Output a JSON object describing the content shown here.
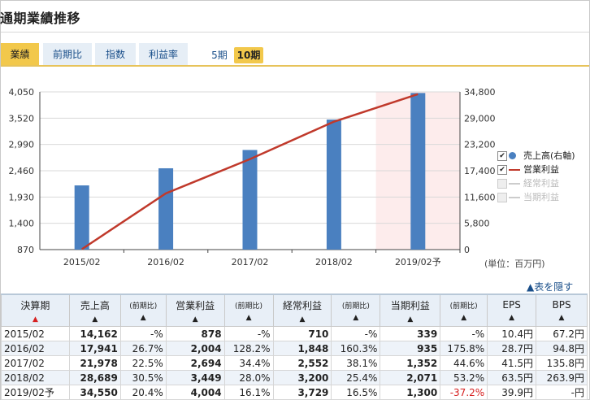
{
  "title": "通期業績推移",
  "tabs": [
    {
      "label": "業績",
      "active": true
    },
    {
      "label": "前期比",
      "active": false
    },
    {
      "label": "指数",
      "active": false
    },
    {
      "label": "利益率",
      "active": false
    }
  ],
  "periods": [
    {
      "label": "5期",
      "active": false
    },
    {
      "label": "10期",
      "active": true
    }
  ],
  "chart_data": {
    "type": "bar+line",
    "categories": [
      "2015/02",
      "2016/02",
      "2017/02",
      "2018/02",
      "2019/02予"
    ],
    "forecast_index": 4,
    "left_axis": {
      "ticks": [
        "870",
        "1,400",
        "1,930",
        "2,460",
        "2,990",
        "3,520",
        "4,050"
      ],
      "range": [
        870,
        4050
      ]
    },
    "right_axis": {
      "ticks": [
        "0",
        "5,800",
        "11,600",
        "17,400",
        "23,200",
        "29,000",
        "34,800"
      ],
      "range": [
        0,
        34800
      ]
    },
    "series": [
      {
        "name": "売上高(右軸)",
        "type": "bar",
        "axis": "right",
        "color": "#4a80c0",
        "values": [
          14162,
          17941,
          21978,
          28689,
          34550
        ]
      },
      {
        "name": "営業利益",
        "type": "line",
        "axis": "left",
        "color": "#c0392b",
        "values": [
          878,
          2004,
          2694,
          3449,
          4004
        ]
      }
    ],
    "legend_position": "right"
  },
  "legend": [
    {
      "label": "売上高(右軸)",
      "checked": true,
      "marker": "dot",
      "color": "#4a80c0"
    },
    {
      "label": "営業利益",
      "checked": true,
      "marker": "line",
      "color": "#c0392b"
    },
    {
      "label": "経常利益",
      "checked": false,
      "marker": "line",
      "color": "#cccccc"
    },
    {
      "label": "当期利益",
      "checked": false,
      "marker": "line",
      "color": "#cccccc"
    }
  ],
  "unit_label": "(単位：百万円)",
  "hide_link": "▲表を隠す",
  "table": {
    "headers": {
      "period": "決算期",
      "sales": "売上高",
      "op": "営業利益",
      "ord": "経常利益",
      "net": "当期利益",
      "yoy": "(前期比)",
      "eps": "EPS",
      "bps": "BPS",
      "sort": "▲"
    },
    "rows": [
      {
        "period": "2015/02",
        "sales": "14,162",
        "sales_yoy": "-%",
        "op": "878",
        "op_yoy": "-%",
        "ord": "710",
        "ord_yoy": "-%",
        "net": "339",
        "net_yoy": "-%",
        "eps": "10.4円",
        "bps": "67.2円"
      },
      {
        "period": "2016/02",
        "sales": "17,941",
        "sales_yoy": "26.7%",
        "op": "2,004",
        "op_yoy": "128.2%",
        "ord": "1,848",
        "ord_yoy": "160.3%",
        "net": "935",
        "net_yoy": "175.8%",
        "eps": "28.7円",
        "bps": "94.8円"
      },
      {
        "period": "2017/02",
        "sales": "21,978",
        "sales_yoy": "22.5%",
        "op": "2,694",
        "op_yoy": "34.4%",
        "ord": "2,552",
        "ord_yoy": "38.1%",
        "net": "1,352",
        "net_yoy": "44.6%",
        "eps": "41.5円",
        "bps": "135.8円"
      },
      {
        "period": "2018/02",
        "sales": "28,689",
        "sales_yoy": "30.5%",
        "op": "3,449",
        "op_yoy": "28.0%",
        "ord": "3,200",
        "ord_yoy": "25.4%",
        "net": "2,071",
        "net_yoy": "53.2%",
        "eps": "63.5円",
        "bps": "263.9円"
      },
      {
        "period": "2019/02予",
        "sales": "34,550",
        "sales_yoy": "20.4%",
        "op": "4,004",
        "op_yoy": "16.1%",
        "ord": "3,729",
        "ord_yoy": "16.5%",
        "net": "1,300",
        "net_yoy": "-37.2%",
        "eps": "39.9円",
        "bps": "-円"
      }
    ]
  }
}
